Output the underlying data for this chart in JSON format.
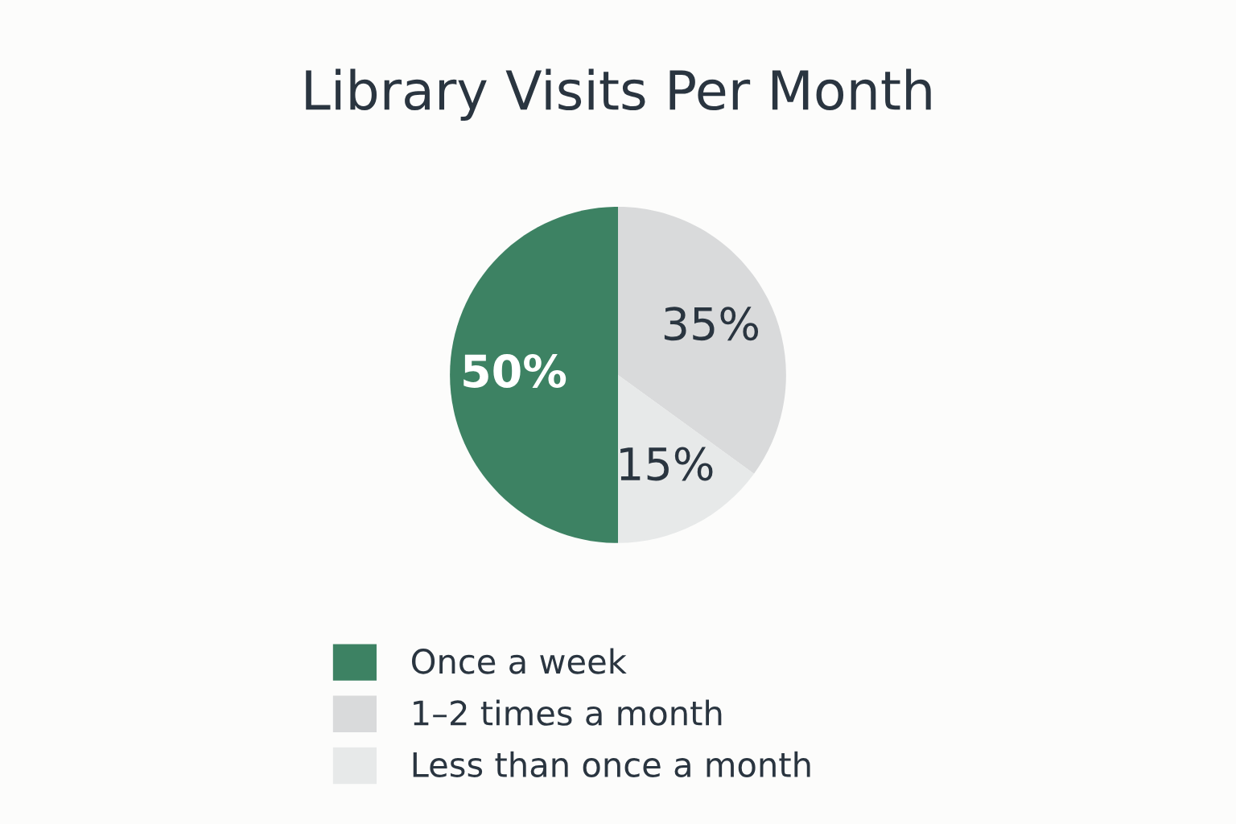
{
  "chart_data": {
    "type": "pie",
    "title": "Library Visits Per Month",
    "categories": [
      "Once a week",
      "1–2 times a month",
      "Less than once a month"
    ],
    "values": [
      50,
      35,
      15
    ],
    "value_labels": [
      "50%",
      "35%",
      "15%"
    ],
    "colors": [
      "#3d8263",
      "#d9dadb",
      "#e7e9e9"
    ],
    "legend": "bottom"
  }
}
